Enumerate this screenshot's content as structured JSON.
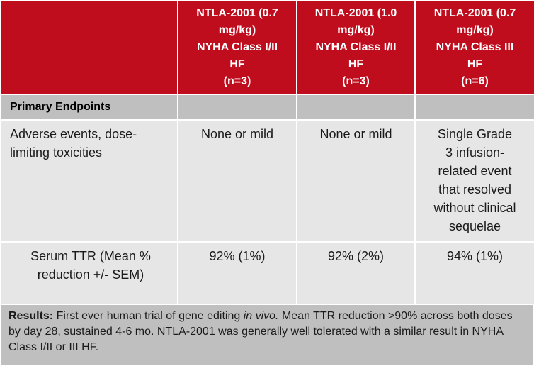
{
  "header": {
    "col1": [
      "NTLA-2001 (0.7",
      "mg/kg)",
      "NYHA Class I/II",
      "HF",
      "(n=3)"
    ],
    "col2": [
      "NTLA-2001 (1.0",
      "mg/kg)",
      "NYHA Class I/II",
      "HF",
      "(n=3)"
    ],
    "col3": [
      "NTLA-2001 (0.7",
      "mg/kg)",
      "NYHA Class III",
      "HF",
      "(n=6)"
    ]
  },
  "section": {
    "label": "Primary Endpoints"
  },
  "rows": [
    {
      "label": [
        "Adverse events, dose-",
        "limiting toxicities"
      ],
      "values": [
        [
          "None or mild"
        ],
        [
          "None or mild"
        ],
        [
          "Single Grade",
          "3 infusion-",
          "related event",
          "that resolved",
          "without clinical",
          "sequelae"
        ]
      ]
    },
    {
      "label": [
        "Serum TTR (Mean %",
        "reduction +/- SEM)"
      ],
      "values": [
        [
          "92% (1%)"
        ],
        [
          "92% (2%)"
        ],
        [
          "94% (1%)"
        ]
      ]
    }
  ],
  "results": {
    "prefix": "Results:",
    "text1": " First ever human trial of gene editing ",
    "italic": "in vivo.",
    "text2": " Mean TTR reduction >90% across both doses by day 28, sustained 4-6 mo. NTLA-2001 was generally well tolerated with a similar result in NYHA Class I/II or III HF."
  }
}
